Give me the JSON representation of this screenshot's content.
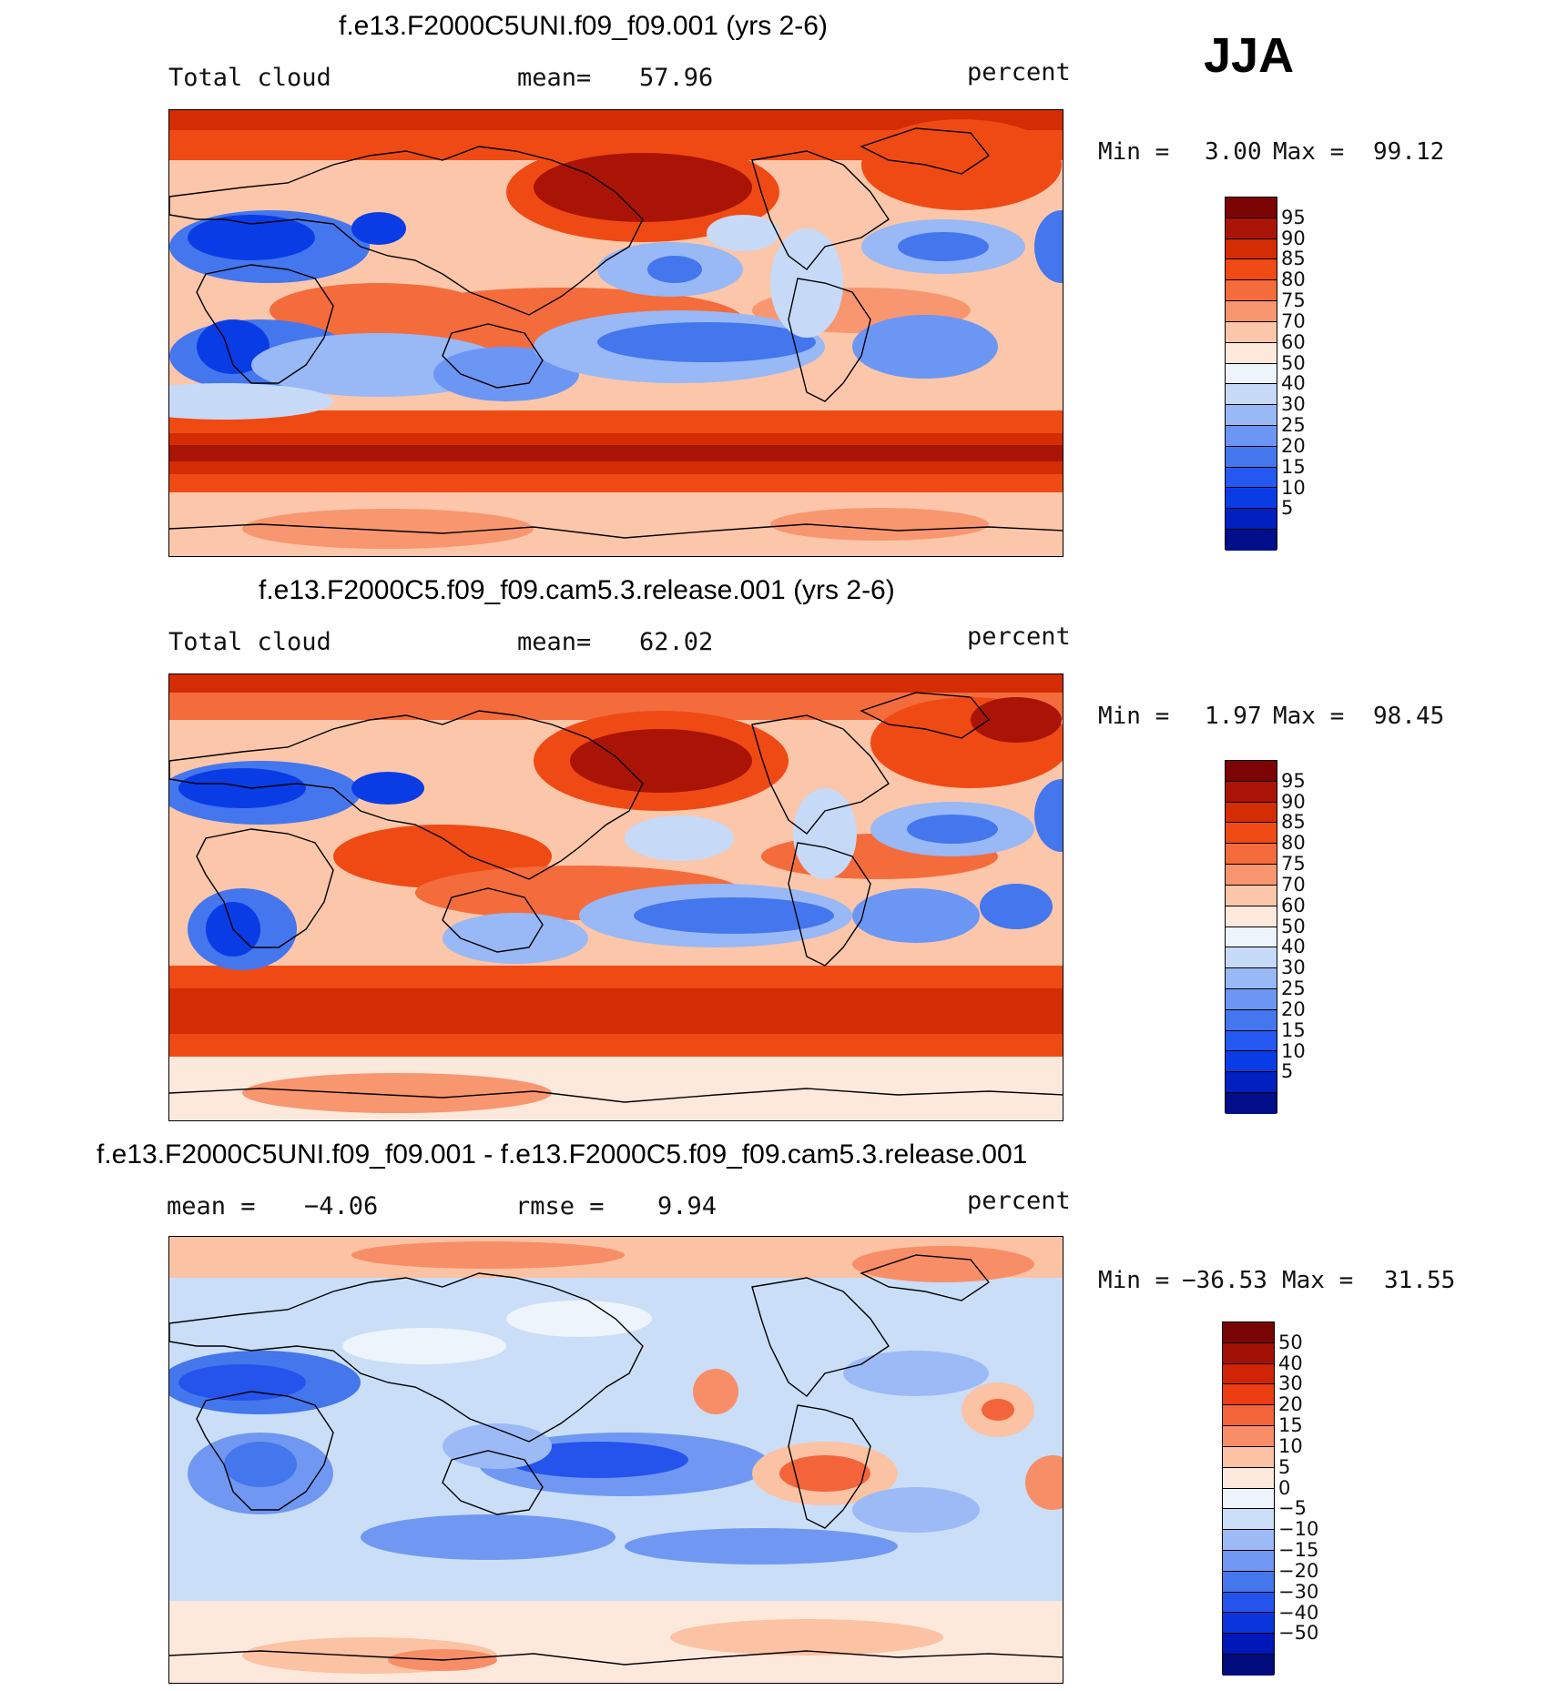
{
  "season": "JJA",
  "colors": {
    "abs": [
      "#000e8a",
      "#0020c0",
      "#0a3ce6",
      "#2458f0",
      "#4476ee",
      "#6c96f4",
      "#98b8f6",
      "#c6daf8",
      "#eef4fc",
      "#fde8dc",
      "#fbc6aa",
      "#f89670",
      "#f46c3c",
      "#f04a14",
      "#d42c04",
      "#aa1406",
      "#7c0404"
    ],
    "diff": [
      "#000c7c",
      "#0018b8",
      "#0a34dc",
      "#2454ec",
      "#4476ec",
      "#7098f2",
      "#9cbaf6",
      "#cadef8",
      "#eef4fc",
      "#fde8dc",
      "#fbc2a4",
      "#f78e68",
      "#f3643a",
      "#ec3c12",
      "#d02404",
      "#a21006",
      "#780404"
    ]
  },
  "panels": [
    {
      "title": "f.e13.F2000C5UNI.f09_f09.001 (yrs 2-6)",
      "left_label": "Total cloud",
      "mid_label": "mean=",
      "mid_value": "57.96",
      "right_label": "percent",
      "min_label": "Min =",
      "min_value": "3.00",
      "max_label": "Max =",
      "max_value": "99.12",
      "levels": [
        "95",
        "90",
        "85",
        "80",
        "75",
        "70",
        "60",
        "50",
        "40",
        "30",
        "25",
        "20",
        "15",
        "10",
        "5"
      ]
    },
    {
      "title": "f.e13.F2000C5.f09_f09.cam5.3.release.001 (yrs 2-6)",
      "left_label": "Total cloud",
      "mid_label": "mean=",
      "mid_value": "62.02",
      "right_label": "percent",
      "min_label": "Min =",
      "min_value": "1.97",
      "max_label": "Max =",
      "max_value": "98.45",
      "levels": [
        "95",
        "90",
        "85",
        "80",
        "75",
        "70",
        "60",
        "50",
        "40",
        "30",
        "25",
        "20",
        "15",
        "10",
        "5"
      ]
    },
    {
      "title": "f.e13.F2000C5UNI.f09_f09.001 - f.e13.F2000C5.f09_f09.cam5.3.release.001",
      "left_label": "mean =",
      "left_value": "−4.06",
      "mid_label": "rmse =",
      "mid_value": "9.94",
      "right_label": "percent",
      "min_label": "Min =",
      "min_value": "−36.53",
      "max_label": "Max =",
      "max_value": "31.55",
      "levels": [
        "50",
        "40",
        "30",
        "20",
        "15",
        "10",
        "5",
        "0",
        "−5",
        "−10",
        "−15",
        "−20",
        "−30",
        "−40",
        "−50"
      ]
    }
  ]
}
